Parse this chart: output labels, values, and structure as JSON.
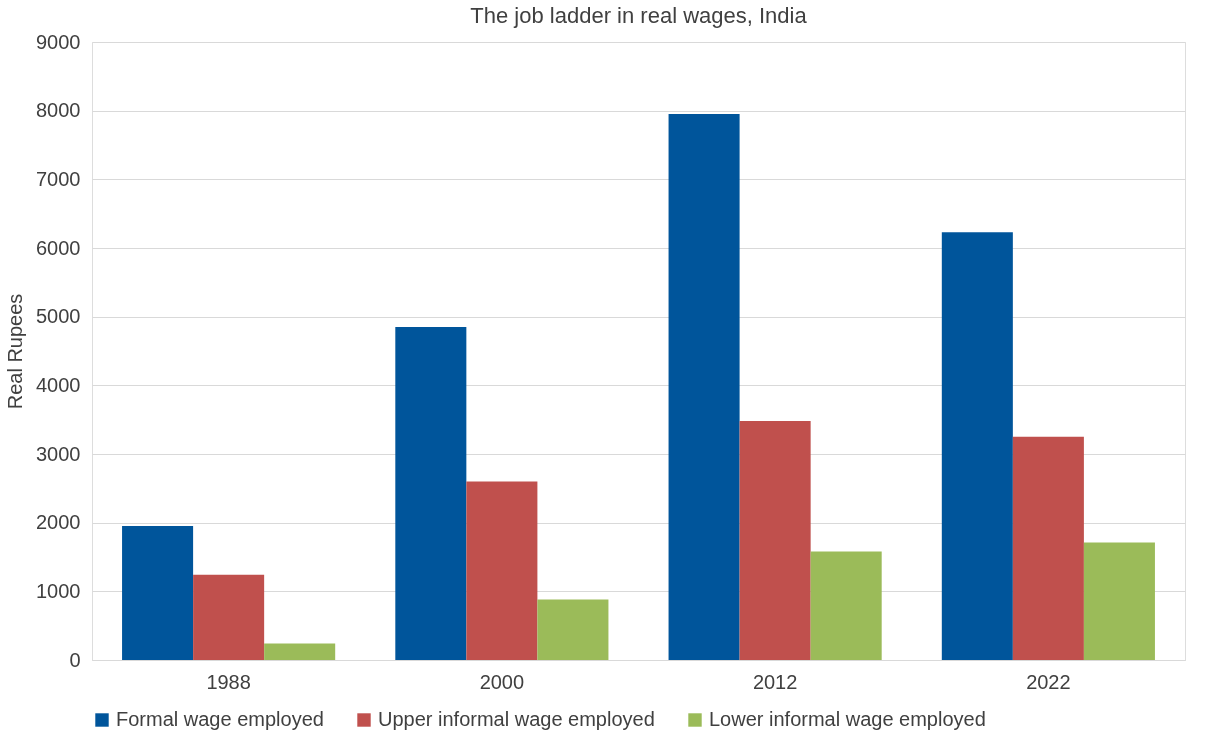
{
  "chart_data": {
    "type": "bar",
    "title": "The job ladder in real wages, India",
    "ylabel": "Real Rupees",
    "categories": [
      "1988",
      "2000",
      "2012",
      "2022"
    ],
    "series": [
      {
        "name": "Formal wage employed",
        "color": "#00559b",
        "values": [
          1950,
          4850,
          7950,
          6230
        ]
      },
      {
        "name": "Upper informal wage employed",
        "color": "#c0504d",
        "values": [
          1240,
          2600,
          3480,
          3250
        ]
      },
      {
        "name": "Lower informal wage employed",
        "color": "#9bbb59",
        "values": [
          240,
          880,
          1580,
          1710
        ]
      }
    ],
    "ylim": [
      0,
      9000
    ],
    "yticks": [
      0,
      1000,
      2000,
      3000,
      4000,
      5000,
      6000,
      7000,
      8000,
      9000
    ],
    "grid": "y",
    "legend": "bottom"
  }
}
